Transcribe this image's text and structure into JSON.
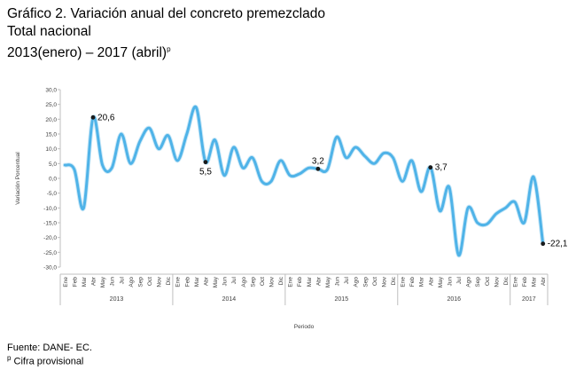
{
  "header": {
    "line1": "Gráfico 2. Variación anual del concreto premezclado",
    "line2": "Total nacional",
    "line3": "2013(enero) – 2017 (abril)",
    "line3_sup": "p"
  },
  "footer": {
    "source": "Fuente: DANE- EC.",
    "note_sup": "p",
    "note": "Cifra provisional"
  },
  "chart_data": {
    "type": "line",
    "xlabel": "Periodo",
    "ylabel": "Variación Porcentual",
    "ylim": [
      -30,
      30
    ],
    "ytick_step": 5,
    "ytick_labels": [
      "30,0",
      "25,0",
      "20,0",
      "15,0",
      "10,0",
      "5,0",
      "0,0",
      "-5,0",
      "-10,0",
      "-15,0",
      "-20,0",
      "-25,0",
      "-30,0"
    ],
    "grid": false,
    "line_color": "#4fb3e8",
    "years": [
      {
        "label": "2013",
        "months": 12
      },
      {
        "label": "2014",
        "months": 12
      },
      {
        "label": "2015",
        "months": 12
      },
      {
        "label": "2016",
        "months": 12
      },
      {
        "label": "2017",
        "months": 4
      }
    ],
    "categories": [
      "Ene",
      "Feb",
      "Mar",
      "Abr",
      "May",
      "Jun",
      "Jul",
      "Ago",
      "Sep",
      "Oct",
      "Nov",
      "Dic",
      "Ene",
      "Feb",
      "Mar",
      "Abr",
      "May",
      "Jun",
      "Jul",
      "Ago",
      "Sep",
      "Oct",
      "Nov",
      "Dic",
      "Ene",
      "Feb",
      "Mar",
      "Abr",
      "May",
      "Jun",
      "Jul",
      "Ago",
      "Sep",
      "Oct",
      "Nov",
      "Dic",
      "Ene",
      "Feb",
      "Mar",
      "Abr",
      "May",
      "Jun",
      "Jul",
      "Ago",
      "Sep",
      "Oct",
      "Nov",
      "Dic",
      "Ene",
      "Feb",
      "Mar",
      "Abr"
    ],
    "values": [
      4.5,
      3.0,
      -10.0,
      20.6,
      4.5,
      3.5,
      15.0,
      5.0,
      12.5,
      17.0,
      10.0,
      14.5,
      6.0,
      15.0,
      24.0,
      5.5,
      13.0,
      1.0,
      10.5,
      3.5,
      7.0,
      -1.0,
      -1.0,
      6.0,
      1.0,
      1.5,
      3.5,
      3.2,
      3.0,
      14.0,
      7.0,
      10.5,
      7.5,
      5.0,
      8.5,
      7.0,
      -1.0,
      6.0,
      -4.5,
      3.7,
      -11.0,
      -3.0,
      -26.0,
      -10.0,
      -15.0,
      -15.5,
      -12.0,
      -10.0,
      -8.0,
      -15.0,
      0.5,
      -22.1
    ],
    "annotations": [
      {
        "index": 3,
        "label": "20,6",
        "pos": "right"
      },
      {
        "index": 15,
        "label": "5,5",
        "pos": "below"
      },
      {
        "index": 27,
        "label": "3,2",
        "pos": "above"
      },
      {
        "index": 39,
        "label": "3,7",
        "pos": "right"
      },
      {
        "index": 51,
        "label": "-22,1",
        "pos": "right"
      }
    ]
  }
}
